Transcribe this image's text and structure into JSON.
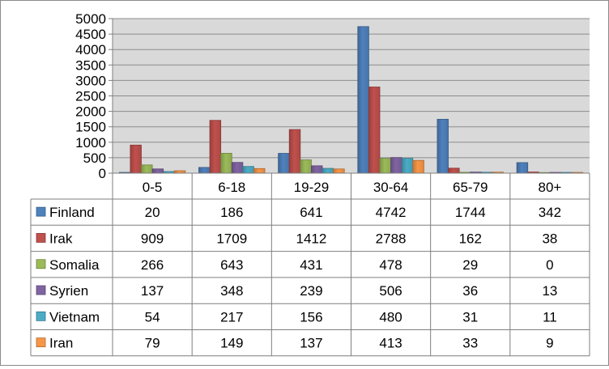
{
  "chart_data": {
    "type": "bar",
    "categories": [
      "0-5",
      "6-18",
      "19-29",
      "30-64",
      "65-79",
      "80+"
    ],
    "series": [
      {
        "name": "Finland",
        "color": "#4F81BD",
        "values": [
          20,
          186,
          641,
          4742,
          1744,
          342
        ]
      },
      {
        "name": "Irak",
        "color": "#C0504D",
        "values": [
          909,
          1709,
          1412,
          2788,
          162,
          38
        ]
      },
      {
        "name": "Somalia",
        "color": "#9BBB59",
        "values": [
          266,
          643,
          431,
          478,
          29,
          0
        ]
      },
      {
        "name": "Syrien",
        "color": "#8064A2",
        "values": [
          137,
          348,
          239,
          506,
          36,
          13
        ]
      },
      {
        "name": "Vietnam",
        "color": "#4BACC6",
        "values": [
          54,
          217,
          156,
          480,
          31,
          11
        ]
      },
      {
        "name": "Iran",
        "color": "#F79646",
        "values": [
          79,
          149,
          137,
          413,
          33,
          9
        ]
      }
    ],
    "y_ticks": [
      "0",
      "500",
      "1000",
      "1500",
      "2000",
      "2500",
      "3000",
      "3500",
      "4000",
      "4500",
      "5000"
    ],
    "ylim": [
      0,
      5000
    ],
    "grid": true,
    "legend": "data-table",
    "plot_background": "#D9D9D9"
  }
}
